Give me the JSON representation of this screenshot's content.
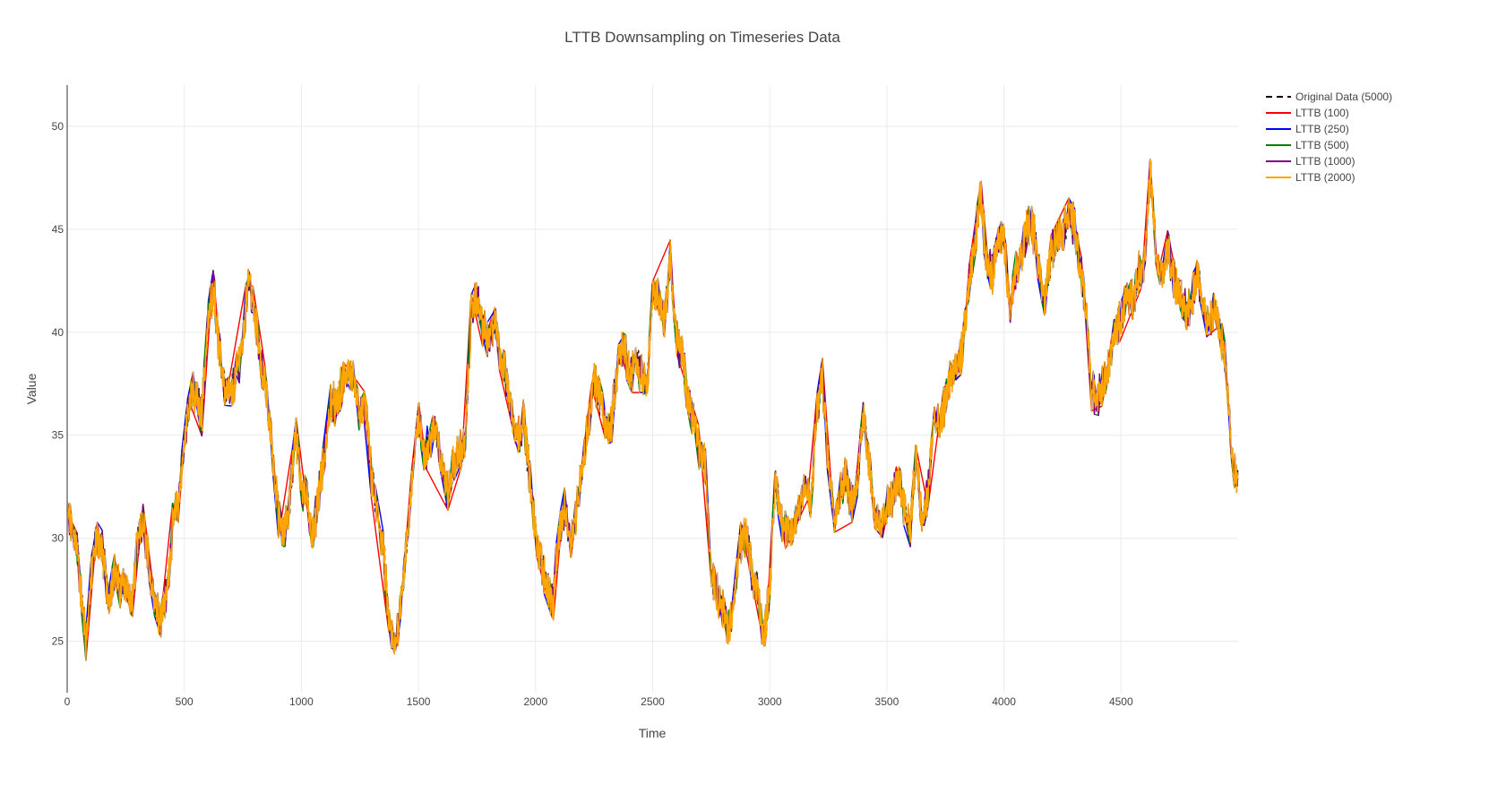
{
  "chart_data": {
    "type": "line",
    "title": "LTTB Downsampling on Timeseries Data",
    "xlabel": "Time",
    "ylabel": "Value",
    "xlim": [
      0,
      5000
    ],
    "ylim": [
      22.5,
      52
    ],
    "xticks": [
      0,
      500,
      1000,
      1500,
      2000,
      2500,
      3000,
      3500,
      4000,
      4500
    ],
    "yticks": [
      25,
      30,
      35,
      40,
      45,
      50
    ],
    "grid": true,
    "legend_position": "top-right",
    "series": [
      {
        "name": "Original Data (5000)",
        "color": "#000000",
        "dash": "dash"
      },
      {
        "name": "LTTB (100)",
        "color": "#ff0000",
        "dash": "solid"
      },
      {
        "name": "LTTB (250)",
        "color": "#0000ff",
        "dash": "solid"
      },
      {
        "name": "LTTB (500)",
        "color": "#008000",
        "dash": "solid"
      },
      {
        "name": "LTTB (1000)",
        "color": "#800080",
        "dash": "solid"
      },
      {
        "name": "LTTB (2000)",
        "color": "#ffa500",
        "dash": "solid"
      }
    ],
    "profile": {
      "x": [
        0,
        20,
        40,
        60,
        80,
        100,
        125,
        150,
        175,
        200,
        225,
        250,
        275,
        300,
        325,
        350,
        375,
        400,
        425,
        450,
        475,
        500,
        525,
        550,
        575,
        600,
        625,
        650,
        675,
        700,
        725,
        750,
        775,
        800,
        825,
        850,
        875,
        900,
        925,
        950,
        975,
        1000,
        1025,
        1050,
        1075,
        1100,
        1125,
        1150,
        1175,
        1200,
        1225,
        1250,
        1275,
        1300,
        1325,
        1350,
        1375,
        1400,
        1425,
        1450,
        1475,
        1500,
        1525,
        1550,
        1575,
        1600,
        1625,
        1650,
        1675,
        1700,
        1725,
        1750,
        1775,
        1800,
        1825,
        1850,
        1875,
        1900,
        1925,
        1950,
        1975,
        2000,
        2025,
        2050,
        2075,
        2100,
        2125,
        2150,
        2175,
        2200,
        2225,
        2250,
        2275,
        2300,
        2325,
        2350,
        2375,
        2400,
        2425,
        2450,
        2475,
        2500,
        2525,
        2550,
        2575,
        2600,
        2625,
        2650,
        2675,
        2700,
        2725,
        2750,
        2775,
        2800,
        2825,
        2850,
        2875,
        2900,
        2925,
        2950,
        2975,
        3000,
        3025,
        3050,
        3075,
        3100,
        3125,
        3150,
        3175,
        3200,
        3225,
        3250,
        3275,
        3300,
        3325,
        3350,
        3375,
        3400,
        3425,
        3450,
        3475,
        3500,
        3525,
        3550,
        3575,
        3600,
        3625,
        3650,
        3675,
        3700,
        3725,
        3750,
        3775,
        3800,
        3825,
        3850,
        3875,
        3900,
        3925,
        3950,
        3975,
        4000,
        4025,
        4050,
        4075,
        4100,
        4125,
        4150,
        4175,
        4200,
        4225,
        4250,
        4275,
        4300,
        4325,
        4350,
        4375,
        4400,
        4425,
        4450,
        4475,
        4500,
        4525,
        4550,
        4575,
        4600,
        4625,
        4650,
        4675,
        4700,
        4725,
        4750,
        4775,
        4800,
        4825,
        4850,
        4875,
        4900,
        4925,
        4950,
        4975,
        4999
      ],
      "y": [
        31.2,
        30.4,
        29.8,
        27.2,
        25.0,
        27.8,
        30.1,
        29.5,
        27.0,
        28.4,
        27.5,
        28.0,
        26.5,
        29.6,
        30.8,
        28.7,
        27.0,
        26.2,
        27.3,
        30.6,
        31.8,
        34.5,
        37.2,
        36.8,
        36.0,
        40.5,
        42.3,
        39.0,
        37.2,
        36.9,
        38.1,
        39.6,
        42.8,
        40.8,
        38.7,
        37.0,
        34.5,
        31.2,
        30.0,
        31.8,
        35.4,
        32.4,
        31.8,
        30.0,
        32.4,
        33.9,
        36.8,
        36.3,
        37.5,
        38.2,
        37.5,
        35.9,
        36.3,
        32.7,
        31.2,
        29.4,
        25.8,
        24.6,
        27.2,
        29.6,
        33.3,
        35.7,
        34.2,
        34.8,
        35.4,
        33.5,
        32.1,
        33.6,
        34.2,
        34.6,
        41.0,
        41.7,
        40.3,
        39.4,
        40.5,
        38.9,
        37.7,
        36.1,
        34.9,
        35.9,
        33.0,
        30.1,
        28.8,
        27.7,
        26.9,
        30.2,
        31.4,
        29.8,
        31.5,
        33.6,
        35.5,
        37.7,
        36.9,
        35.3,
        35.7,
        38.4,
        39.5,
        37.8,
        38.6,
        38.0,
        37.3,
        42.0,
        41.8,
        40.5,
        43.6,
        39.8,
        38.9,
        37.0,
        35.8,
        34.3,
        33.6,
        28.4,
        27.4,
        26.6,
        25.6,
        27.2,
        29.7,
        30.2,
        28.1,
        27.4,
        25.1,
        27.8,
        32.9,
        31.0,
        30.1,
        30.4,
        31.6,
        32.8,
        31.4,
        36.0,
        37.8,
        33.6,
        31.2,
        32.1,
        33.2,
        31.5,
        32.8,
        36.4,
        33.6,
        31.0,
        30.4,
        31.5,
        32.0,
        33.0,
        31.6,
        30.5,
        34.1,
        30.6,
        32.2,
        35.8,
        35.2,
        36.8,
        37.9,
        38.1,
        39.4,
        42.2,
        44.0,
        46.8,
        43.5,
        42.7,
        44.8,
        44.5,
        40.9,
        43.0,
        43.7,
        45.3,
        44.9,
        43.2,
        41.5,
        43.8,
        44.6,
        44.8,
        45.9,
        45.2,
        43.1,
        41.2,
        37.1,
        36.8,
        37.5,
        38.4,
        40.1,
        40.6,
        41.9,
        41.6,
        42.9,
        43.5,
        47.9,
        43.5,
        42.6,
        44.2,
        42.5,
        41.7,
        41.0,
        41.5,
        42.9,
        41.4,
        40.1,
        41.2,
        39.8,
        38.3,
        33.6,
        33.1
      ]
    },
    "noise_scale": 1.3
  }
}
